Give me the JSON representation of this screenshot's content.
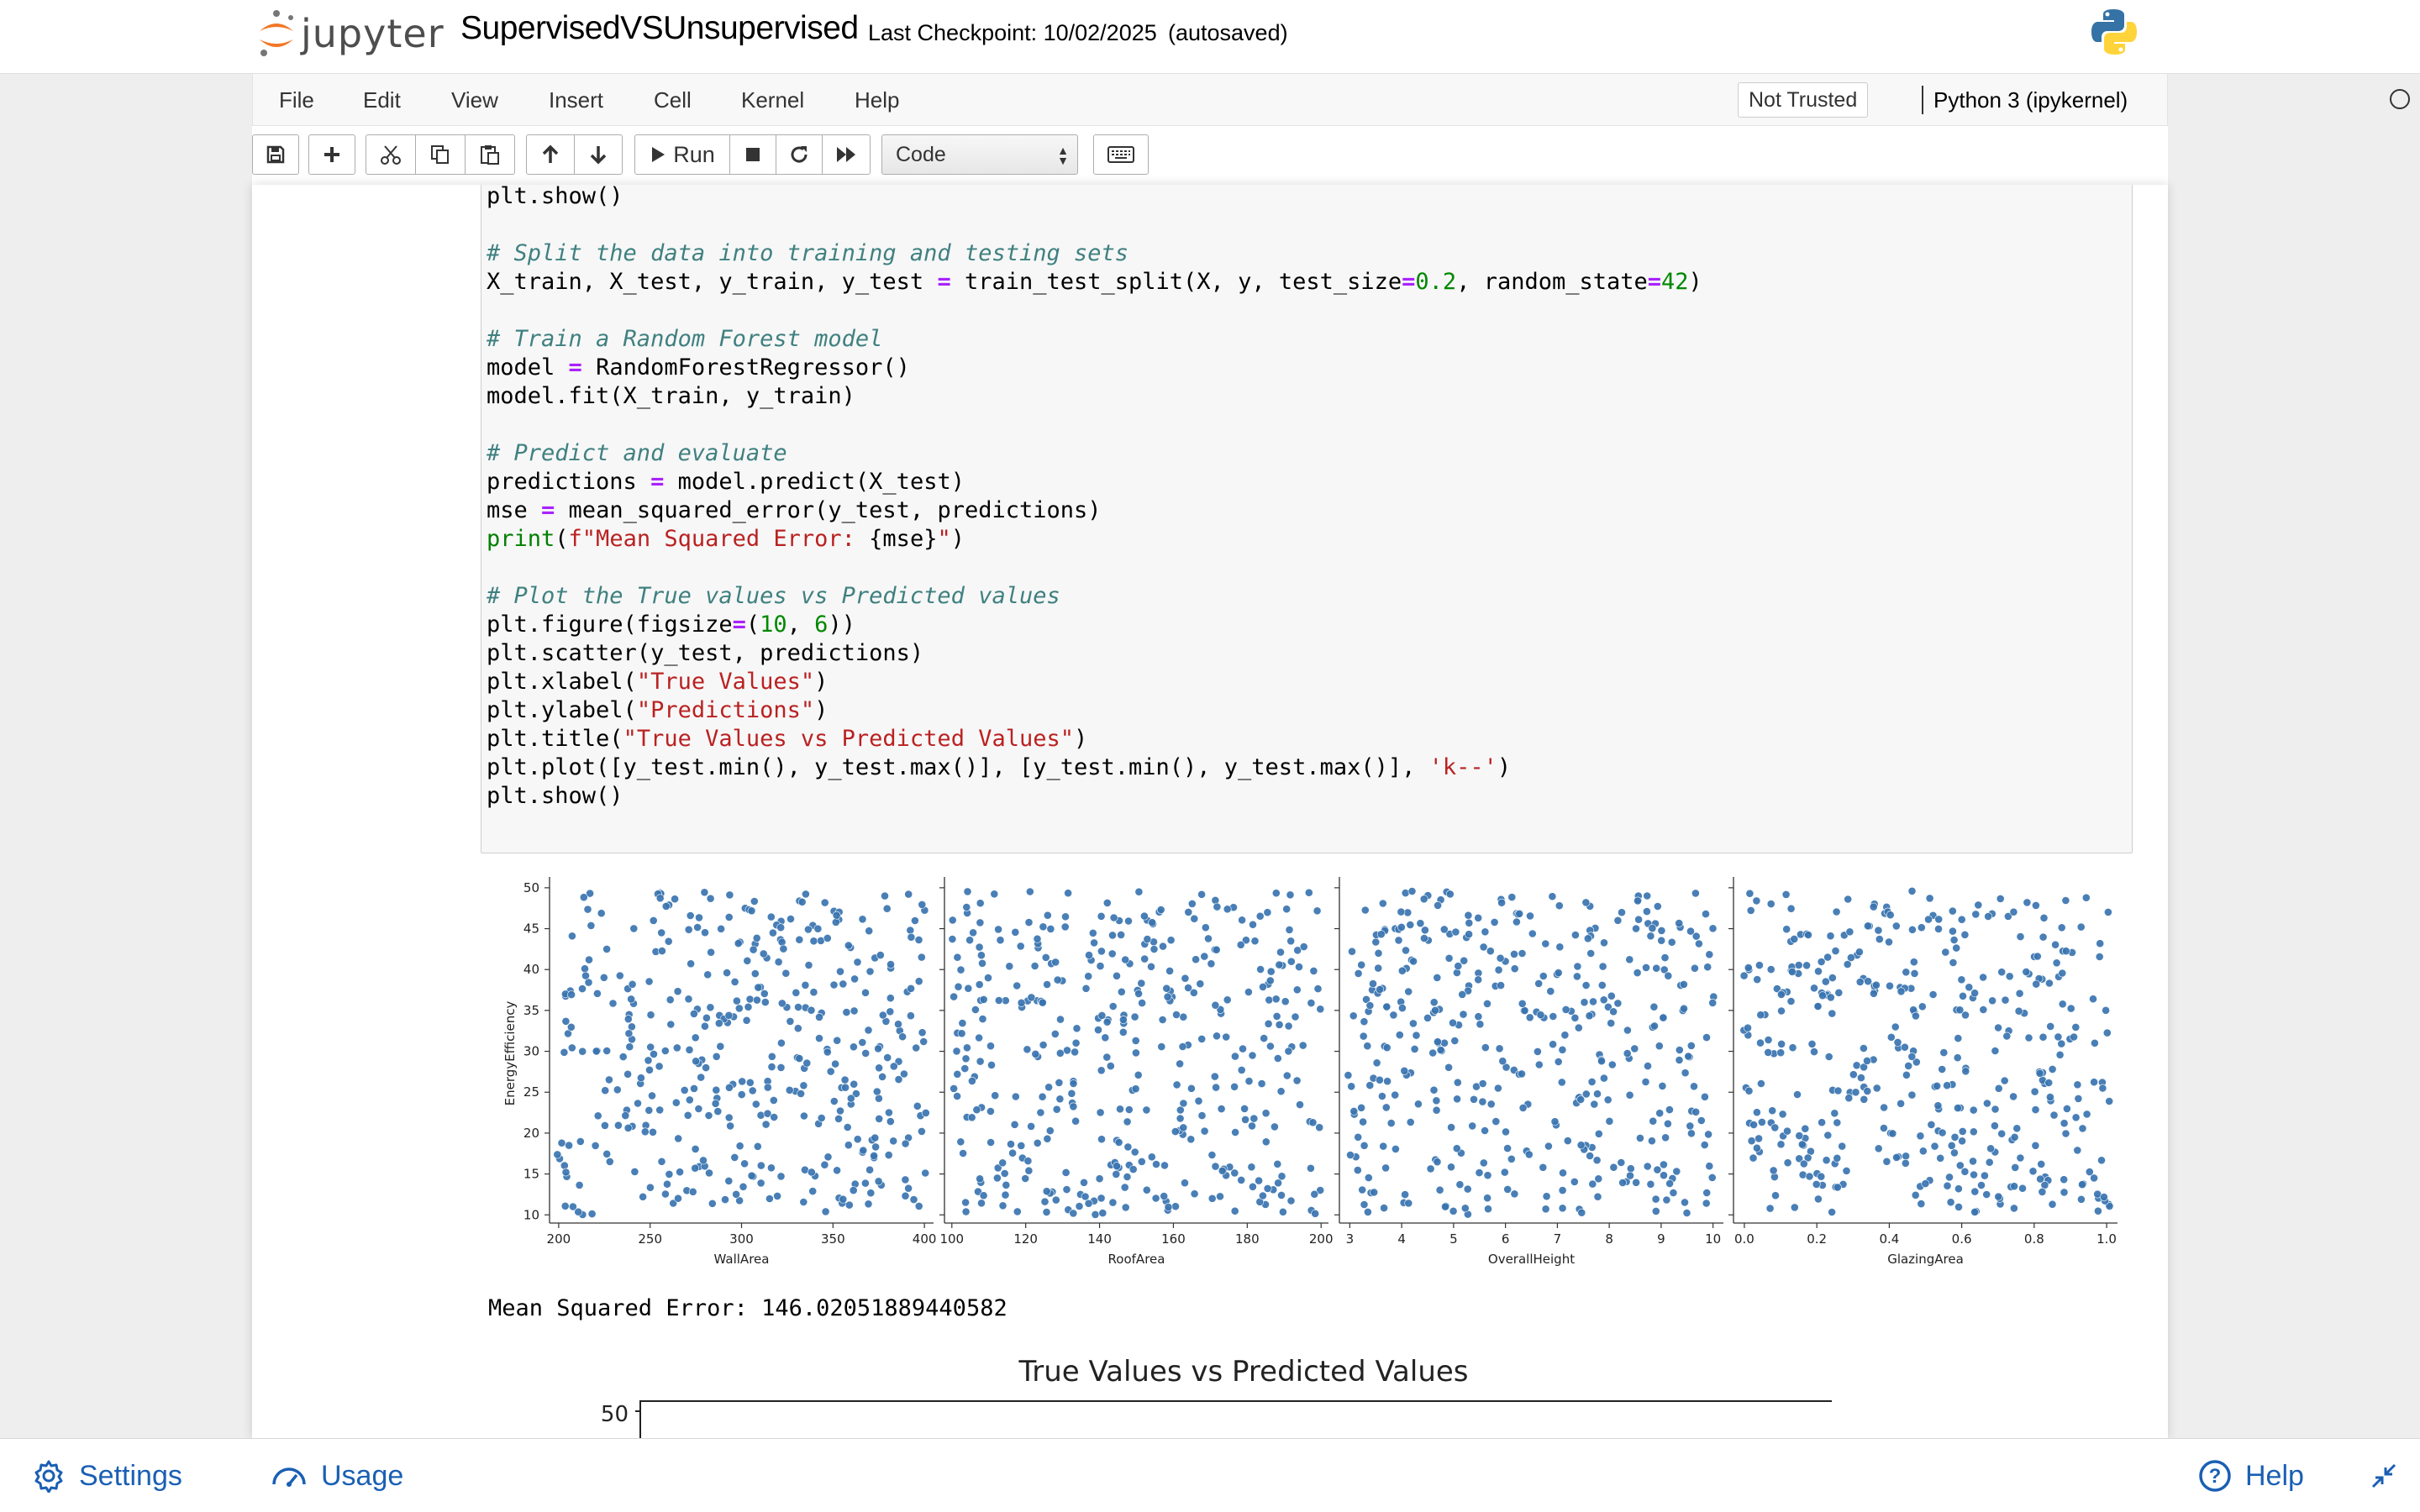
{
  "header": {
    "logo_text": "jupyter",
    "notebook_name": "SupervisedVSUnsupervised",
    "checkpoint": "Last Checkpoint: 10/02/2025",
    "autosave": "(autosaved)"
  },
  "menubar": {
    "items": [
      "File",
      "Edit",
      "View",
      "Insert",
      "Cell",
      "Kernel",
      "Help"
    ],
    "trust": "Not Trusted",
    "kernel": "Python 3 (ipykernel)"
  },
  "toolbar": {
    "run_label": "Run",
    "cell_type": "Code",
    "buttons": [
      "save-icon",
      "plus-icon",
      "cut-icon",
      "copy-icon",
      "paste-icon",
      "arrow-up-icon",
      "arrow-down-icon",
      "play-icon",
      "stop-icon",
      "restart-icon",
      "fast-forward-icon",
      "keyboard-icon"
    ]
  },
  "code_lines": [
    [
      [
        "plt.show()",
        ""
      ]
    ],
    [
      [
        "",
        ""
      ]
    ],
    [
      [
        "# Split the data into training and testing sets",
        "comment"
      ]
    ],
    [
      [
        "X_train, X_test, y_train, y_test ",
        ""
      ],
      [
        "=",
        "op"
      ],
      [
        " train_test_split(X, y, test_size",
        ""
      ],
      [
        "=",
        "op"
      ],
      [
        "0.2",
        "num"
      ],
      [
        ", random_state",
        ""
      ],
      [
        "=",
        "op"
      ],
      [
        "42",
        "num"
      ],
      [
        ")",
        ""
      ]
    ],
    [
      [
        "",
        ""
      ]
    ],
    [
      [
        "# Train a Random Forest model",
        "comment"
      ]
    ],
    [
      [
        "model ",
        ""
      ],
      [
        "=",
        "op"
      ],
      [
        " RandomForestRegressor()",
        ""
      ]
    ],
    [
      [
        "model.fit(X_train, y_train)",
        ""
      ]
    ],
    [
      [
        "",
        ""
      ]
    ],
    [
      [
        "# Predict and evaluate",
        "comment"
      ]
    ],
    [
      [
        "predictions ",
        ""
      ],
      [
        "=",
        "op"
      ],
      [
        " model.predict(X_test)",
        ""
      ]
    ],
    [
      [
        "mse ",
        ""
      ],
      [
        "=",
        "op"
      ],
      [
        " mean_squared_error(y_test, predictions)",
        ""
      ]
    ],
    [
      [
        "print",
        "builtin"
      ],
      [
        "(",
        ""
      ],
      [
        "f\"Mean Squared Error: ",
        "str"
      ],
      [
        "{mse}",
        ""
      ],
      [
        "\"",
        "str"
      ],
      [
        ")",
        ""
      ]
    ],
    [
      [
        "",
        ""
      ]
    ],
    [
      [
        "# Plot the True values vs Predicted values",
        "comment"
      ]
    ],
    [
      [
        "plt.figure(figsize",
        ""
      ],
      [
        "=",
        "op"
      ],
      [
        "(",
        ""
      ],
      [
        "10",
        "num"
      ],
      [
        ", ",
        ""
      ],
      [
        "6",
        "num"
      ],
      [
        "))",
        ""
      ]
    ],
    [
      [
        "plt.scatter(y_test, predictions)",
        ""
      ]
    ],
    [
      [
        "plt.xlabel(",
        ""
      ],
      [
        "\"True Values\"",
        "str"
      ],
      [
        ")",
        ""
      ]
    ],
    [
      [
        "plt.ylabel(",
        ""
      ],
      [
        "\"Predictions\"",
        "str"
      ],
      [
        ")",
        ""
      ]
    ],
    [
      [
        "plt.title(",
        ""
      ],
      [
        "\"True Values vs Predicted Values\"",
        "str"
      ],
      [
        ")",
        ""
      ]
    ],
    [
      [
        "plt.plot([y_test.min(), y_test.max()], [y_test.min(), y_test.max()], ",
        ""
      ],
      [
        "'k--'",
        "str"
      ],
      [
        ")",
        ""
      ]
    ],
    [
      [
        "plt.show()",
        ""
      ]
    ]
  ],
  "mse_output": "Mean Squared Error: 146.02051889440582",
  "chart_data": [
    {
      "type": "scatter",
      "ylabel": "EnergyEfficiency",
      "ylim": [
        9,
        50.5
      ],
      "yticks": [
        10,
        15,
        20,
        25,
        30,
        35,
        40,
        45,
        50
      ],
      "color": "#3a74b0",
      "panels": [
        {
          "xlabel": "WallArea",
          "xlim": [
            195,
            405
          ],
          "xticks": [
            200,
            250,
            300,
            350,
            400
          ],
          "xtick_labels": [
            "200",
            "250",
            "300",
            "350",
            "400"
          ],
          "seed": 11
        },
        {
          "xlabel": "RoofArea",
          "xlim": [
            98,
            202
          ],
          "xticks": [
            100,
            120,
            140,
            160,
            180,
            200
          ],
          "xtick_labels": [
            "100",
            "120",
            "140",
            "160",
            "180",
            "200"
          ],
          "seed": 23
        },
        {
          "xlabel": "OverallHeight",
          "xlim": [
            2.8,
            10.2
          ],
          "xticks": [
            3,
            4,
            5,
            6,
            7,
            8,
            9,
            10
          ],
          "xtick_labels": [
            "3",
            "4",
            "5",
            "6",
            "7",
            "8",
            "9",
            "10"
          ],
          "seed": 37
        },
        {
          "xlabel": "GlazingArea",
          "xlim": [
            -0.03,
            1.03
          ],
          "xticks": [
            0,
            0.2,
            0.4,
            0.6,
            0.8,
            1.0
          ],
          "xtick_labels": [
            "0.0",
            "0.2",
            "0.4",
            "0.6",
            "0.8",
            "1.0"
          ],
          "seed": 53
        }
      ]
    },
    {
      "type": "scatter",
      "title": "True Values vs Predicted Values",
      "yticks_visible": [
        "50"
      ],
      "points_visible": []
    }
  ],
  "bottombar": {
    "settings": "Settings",
    "usage": "Usage",
    "help": "Help"
  }
}
